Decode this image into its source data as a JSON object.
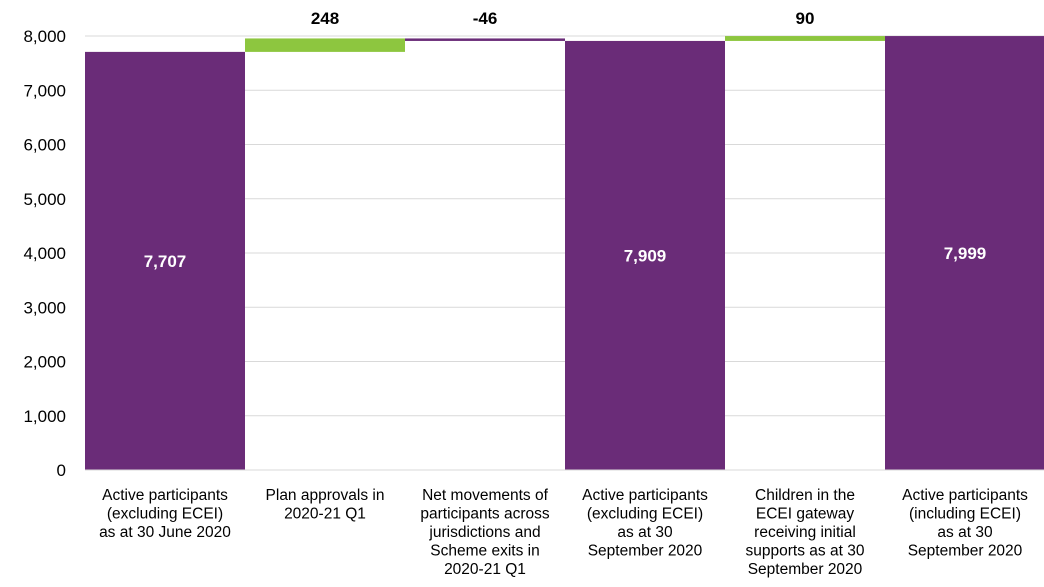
{
  "chart_data": {
    "type": "bar",
    "subtype": "waterfall",
    "categories": [
      [
        "Active participants",
        "(excluding ECEI)",
        "as at 30 June 2020"
      ],
      [
        "Plan approvals in",
        "2020-21 Q1"
      ],
      [
        "Net movements of",
        "participants across",
        "jurisdictions and",
        "Scheme exits in",
        "2020-21 Q1"
      ],
      [
        "Active participants",
        "(excluding ECEI)",
        "as at 30",
        "September 2020"
      ],
      [
        "Children in the",
        "ECEI gateway",
        "receiving initial",
        "supports as at 30",
        "September 2020"
      ],
      [
        "Active participants",
        "(including ECEI)",
        "as at 30",
        "September 2020"
      ]
    ],
    "values": [
      7707,
      248,
      -46,
      7909,
      90,
      7999
    ],
    "bar_kinds": [
      "total",
      "delta",
      "delta",
      "total",
      "delta",
      "total"
    ],
    "data_labels": [
      "7,707",
      "248",
      "-46",
      "7,909",
      "90",
      "7,999"
    ],
    "ylim": [
      0,
      8000
    ],
    "yticks": [
      0,
      1000,
      2000,
      3000,
      4000,
      5000,
      6000,
      7000,
      8000
    ],
    "ytick_labels": [
      "0",
      "1,000",
      "2,000",
      "3,000",
      "4,000",
      "5,000",
      "6,000",
      "7,000",
      "8,000"
    ],
    "grid": true,
    "colors": {
      "total": "#6a2c78",
      "increase": "#8dc63f",
      "decrease": "#6a2c78",
      "grid": "#d9d9d9",
      "axis": "#d9d9d9",
      "total_label": "#ffffff",
      "delta_label": "#000000"
    }
  }
}
